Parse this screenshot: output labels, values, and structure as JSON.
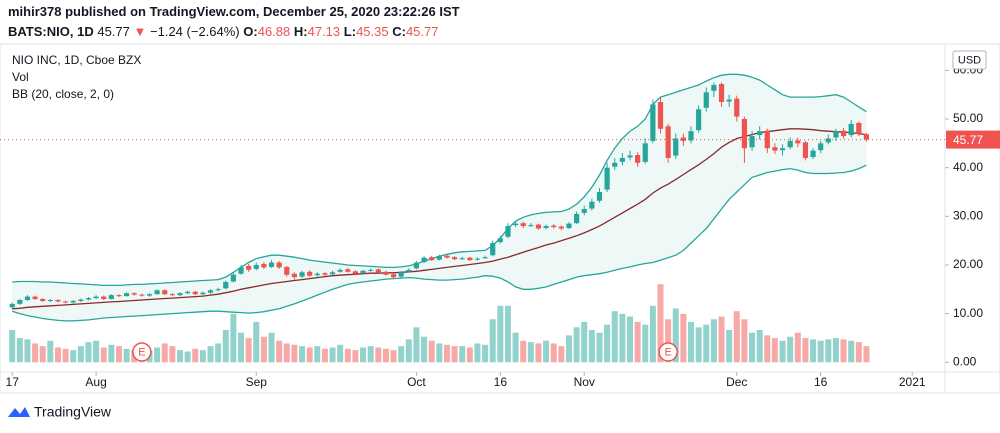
{
  "header": {
    "byline": "mihir378 published on TradingView.com, December 25, 2020 23:22:26 IST",
    "symbol": "BATS:NIO, 1D",
    "last": "45.77",
    "arrow": "▼",
    "change": "−1.24 (−2.64%)",
    "o_label": "O:",
    "o": "46.88",
    "h_label": "H:",
    "h": "47.13",
    "l_label": "L:",
    "l": "45.35",
    "c_label": "C:",
    "c": "45.77"
  },
  "footer": {
    "logo": "TradingView"
  },
  "chart_data": {
    "type": "candlestick",
    "legend": [
      "NIO INC, 1D, Cboe BZX",
      "Vol",
      "BB (20, close, 2, 0)"
    ],
    "currency": "USD",
    "up_color": "#26a69a",
    "down_color": "#ef5350",
    "band_color": "#26a69a",
    "basis_color": "#8b2a2a",
    "ylim": [
      -2,
      64.6
    ],
    "yticks": [
      {
        "value": 0,
        "label": "0.00"
      },
      {
        "value": 10,
        "label": "10.00"
      },
      {
        "value": 20,
        "label": "20.00"
      },
      {
        "value": 30,
        "label": "30.00"
      },
      {
        "value": 40,
        "label": "40.00"
      },
      {
        "value": 50,
        "label": "50.00"
      },
      {
        "value": 60,
        "label": "60.00"
      }
    ],
    "xlim": [
      -1.6,
      122.3
    ],
    "xticks": [
      {
        "value": 0,
        "label": "17"
      },
      {
        "value": 11,
        "label": "Aug"
      },
      {
        "value": 32,
        "label": "Sep"
      },
      {
        "value": 53,
        "label": "Oct"
      },
      {
        "value": 64,
        "label": "16"
      },
      {
        "value": 75,
        "label": "Nov"
      },
      {
        "value": 95,
        "label": "Dec"
      },
      {
        "value": 106,
        "label": "16"
      },
      {
        "value": 118,
        "label": "2021"
      }
    ],
    "annotations": [
      {
        "label": "E",
        "x": 17
      },
      {
        "label": "E",
        "x": 86
      }
    ],
    "open": [
      11.3,
      12.0,
      12.8,
      13.5,
      13.0,
      12.6,
      12.8,
      12.5,
      12.3,
      12.6,
      12.9,
      13.2,
      13.5,
      13.0,
      13.8,
      13.6,
      14.2,
      13.9,
      13.7,
      14.0,
      14.8,
      14.0,
      13.8,
      14.2,
      14.5,
      14.0,
      14.3,
      14.8,
      15.2,
      16.6,
      18.2,
      19.8,
      19.2,
      20.2,
      19.6,
      20.5,
      19.6,
      18.2,
      17.6,
      18.6,
      17.9,
      18.3,
      18.1,
      18.6,
      19.1,
      18.7,
      18.3,
      18.9,
      19.1,
      18.6,
      18.1,
      17.6,
      18.6,
      19.3,
      20.6,
      21.6,
      21.1,
      21.9,
      21.6,
      21.3,
      21.5,
      21.1,
      21.4,
      22.0,
      24.7,
      25.8,
      28.2,
      28.6,
      28.1,
      28.3,
      27.6,
      28.1,
      27.9,
      27.6,
      28.6,
      30.7,
      31.6,
      33.2,
      35.5,
      40.2,
      41.2,
      42.1,
      42.6,
      41.2,
      45.5,
      53.5,
      48.5,
      42.5,
      46.2,
      45.6,
      47.7,
      52.3,
      55.8,
      57.2,
      53.6,
      54.2,
      50.0,
      44.2,
      46.7,
      47.6,
      44.2,
      43.6,
      44.2,
      45.6,
      45.2,
      42.2,
      43.6,
      45.2,
      46.2,
      47.6,
      46.7,
      49.2,
      46.88
    ],
    "high": [
      12.3,
      13.0,
      13.8,
      13.7,
      13.2,
      13.0,
      13.0,
      12.7,
      12.8,
      13.1,
      13.4,
      13.8,
      13.7,
      14.0,
      14.0,
      14.4,
      14.4,
      14.1,
      14.2,
      15.0,
      15.0,
      14.2,
      14.4,
      14.7,
      14.7,
      14.5,
      15.0,
      15.3,
      16.8,
      18.4,
      20.0,
      20.2,
      20.5,
      20.6,
      21.0,
      20.8,
      19.8,
      18.5,
      18.8,
      18.9,
      18.5,
      18.6,
      18.8,
      19.3,
      19.4,
      18.9,
      19.0,
      19.3,
      19.3,
      18.8,
      18.3,
      18.7,
      19.3,
      20.8,
      21.8,
      21.9,
      22.1,
      22.2,
      21.8,
      21.7,
      21.7,
      21.6,
      21.9,
      25.0,
      26.0,
      28.6,
      29.0,
      28.9,
      28.6,
      28.5,
      28.3,
      28.4,
      28.1,
      28.8,
      31.0,
      32.2,
      33.6,
      35.8,
      41.0,
      42.0,
      43.0,
      43.5,
      43.2,
      46.0,
      54.0,
      54.5,
      49.0,
      47.0,
      47.0,
      48.5,
      52.8,
      56.5,
      57.5,
      57.5,
      55.0,
      54.8,
      50.5,
      47.5,
      48.5,
      48.0,
      45.0,
      44.8,
      46.2,
      46.2,
      45.5,
      44.0,
      45.5,
      46.8,
      48.0,
      48.2,
      49.8,
      49.5,
      47.13
    ],
    "low": [
      11.0,
      11.8,
      12.6,
      12.8,
      12.4,
      12.4,
      12.3,
      12.1,
      12.1,
      12.4,
      12.7,
      13.0,
      12.8,
      12.9,
      13.4,
      13.5,
      13.7,
      13.5,
      13.5,
      13.9,
      13.8,
      13.6,
      13.6,
      14.0,
      13.8,
      13.8,
      14.1,
      14.6,
      15.0,
      16.4,
      18.0,
      18.6,
      18.9,
      19.2,
      19.4,
      19.2,
      17.6,
      17.0,
      17.3,
      17.5,
      17.6,
      17.7,
      17.9,
      18.4,
      18.4,
      17.9,
      18.1,
      18.6,
      18.3,
      17.8,
      17.2,
      17.4,
      18.4,
      19.1,
      20.4,
      20.8,
      20.9,
      21.3,
      21.0,
      21.0,
      20.8,
      20.9,
      21.2,
      21.8,
      24.4,
      25.5,
      27.8,
      27.6,
      27.8,
      27.2,
      27.3,
      27.5,
      27.1,
      27.4,
      28.4,
      30.2,
      31.2,
      32.8,
      35.0,
      39.5,
      40.5,
      41.5,
      40.2,
      40.8,
      45.0,
      47.0,
      41.0,
      41.8,
      44.5,
      45.0,
      47.2,
      51.5,
      54.5,
      52.5,
      52.5,
      49.5,
      41.0,
      43.5,
      45.8,
      43.0,
      42.8,
      42.5,
      43.8,
      44.2,
      41.5,
      41.8,
      43.0,
      44.8,
      45.5,
      46.0,
      46.2,
      46.5,
      45.35
    ],
    "close": [
      12.0,
      12.8,
      13.5,
      13.0,
      12.6,
      12.8,
      12.5,
      12.3,
      12.6,
      12.9,
      13.2,
      13.5,
      13.0,
      13.8,
      13.6,
      14.2,
      13.9,
      13.7,
      14.0,
      14.8,
      14.0,
      13.8,
      14.2,
      14.5,
      14.0,
      14.3,
      14.8,
      15.0,
      16.5,
      18.0,
      19.5,
      19.0,
      20.0,
      19.5,
      20.5,
      19.5,
      18.0,
      17.5,
      18.5,
      17.8,
      18.2,
      18.0,
      18.5,
      19.0,
      18.6,
      18.2,
      18.8,
      19.0,
      18.5,
      18.0,
      17.5,
      18.5,
      19.0,
      20.5,
      21.5,
      21.0,
      21.8,
      21.5,
      21.2,
      21.4,
      21.0,
      21.3,
      21.6,
      24.5,
      25.5,
      28.0,
      28.5,
      28.0,
      28.2,
      27.5,
      28.0,
      27.8,
      27.5,
      28.5,
      30.5,
      31.5,
      33.0,
      35.0,
      40.0,
      41.0,
      42.0,
      42.5,
      41.0,
      45.0,
      53.0,
      48.0,
      42.0,
      46.0,
      45.5,
      47.5,
      52.0,
      55.5,
      57.0,
      53.5,
      54.0,
      50.5,
      44.0,
      46.5,
      47.5,
      44.0,
      43.5,
      44.0,
      45.5,
      45.0,
      42.0,
      43.5,
      45.0,
      46.0,
      47.5,
      46.5,
      49.0,
      47.0,
      45.77
    ],
    "volume": [
      120,
      90,
      85,
      70,
      60,
      80,
      55,
      50,
      45,
      60,
      75,
      80,
      55,
      65,
      60,
      50,
      45,
      40,
      45,
      55,
      70,
      60,
      45,
      40,
      50,
      45,
      60,
      70,
      120,
      180,
      110,
      90,
      150,
      95,
      110,
      80,
      70,
      65,
      60,
      55,
      60,
      50,
      55,
      65,
      50,
      45,
      55,
      60,
      55,
      50,
      45,
      60,
      85,
      130,
      95,
      80,
      70,
      65,
      60,
      60,
      55,
      70,
      65,
      160,
      210,
      210,
      110,
      80,
      75,
      70,
      80,
      70,
      60,
      100,
      130,
      150,
      120,
      110,
      140,
      190,
      180,
      170,
      150,
      140,
      210,
      290,
      160,
      200,
      180,
      150,
      130,
      140,
      160,
      170,
      120,
      190,
      160,
      110,
      120,
      100,
      90,
      80,
      95,
      110,
      90,
      85,
      80,
      85,
      90,
      85,
      80,
      75,
      60
    ],
    "bb_basis": [
      11.0,
      11.1,
      11.3,
      11.4,
      11.5,
      11.6,
      11.7,
      11.8,
      11.9,
      12.0,
      12.1,
      12.2,
      12.3,
      12.4,
      12.5,
      12.6,
      12.7,
      12.8,
      12.9,
      13.0,
      13.1,
      13.2,
      13.3,
      13.4,
      13.5,
      13.6,
      13.8,
      14.0,
      14.3,
      14.6,
      15.0,
      15.3,
      15.6,
      15.9,
      16.2,
      16.4,
      16.6,
      16.8,
      17.0,
      17.2,
      17.4,
      17.6,
      17.8,
      17.9,
      18.0,
      18.1,
      18.2,
      18.3,
      18.3,
      18.4,
      18.4,
      18.5,
      18.6,
      18.7,
      18.9,
      19.1,
      19.3,
      19.5,
      19.7,
      19.9,
      20.1,
      20.3,
      20.5,
      20.8,
      21.2,
      21.6,
      22.1,
      22.6,
      23.1,
      23.6,
      24.1,
      24.5,
      25.0,
      25.5,
      26.0,
      26.6,
      27.3,
      28.0,
      28.9,
      29.8,
      30.7,
      31.6,
      32.5,
      33.5,
      34.8,
      35.8,
      36.6,
      37.6,
      38.6,
      39.6,
      40.6,
      41.7,
      42.9,
      44.2,
      45.2,
      46.0,
      46.4,
      46.8,
      47.2,
      47.4,
      47.6,
      47.8,
      48.0,
      48.0,
      47.9,
      47.8,
      47.6,
      47.5,
      47.4,
      47.3,
      47.2,
      47.0,
      46.8
    ],
    "bb_upper": [
      16.5,
      16.6,
      16.6,
      16.6,
      16.5,
      16.5,
      16.4,
      16.3,
      16.2,
      16.1,
      16.0,
      15.9,
      15.8,
      15.8,
      15.8,
      15.9,
      16.0,
      16.0,
      16.1,
      16.2,
      16.3,
      16.4,
      16.5,
      16.6,
      16.7,
      16.8,
      16.9,
      17.0,
      17.5,
      18.5,
      19.5,
      20.5,
      21.3,
      21.7,
      22.0,
      22.0,
      21.8,
      21.6,
      21.3,
      21.0,
      20.8,
      20.6,
      20.4,
      20.2,
      20.0,
      19.9,
      19.8,
      19.7,
      19.6,
      19.5,
      19.5,
      19.6,
      19.8,
      20.2,
      20.8,
      21.3,
      21.8,
      22.2,
      22.5,
      22.7,
      22.8,
      22.9,
      23.0,
      24.0,
      25.5,
      27.5,
      29.0,
      29.8,
      30.3,
      30.6,
      30.8,
      30.9,
      31.0,
      31.5,
      32.5,
      34.0,
      36.0,
      38.5,
      41.5,
      44.0,
      46.0,
      47.5,
      48.5,
      50.0,
      53.0,
      54.5,
      55.0,
      55.5,
      56.0,
      56.5,
      57.0,
      57.8,
      58.5,
      59.0,
      59.2,
      59.2,
      59.0,
      58.6,
      58.0,
      57.0,
      56.0,
      55.0,
      54.5,
      54.5,
      54.5,
      54.5,
      54.6,
      54.8,
      55.0,
      54.5,
      53.5,
      52.5,
      51.5
    ],
    "bb_lower": [
      10.5,
      10.0,
      9.6,
      9.3,
      9.0,
      8.8,
      8.6,
      8.5,
      8.5,
      8.6,
      8.7,
      8.9,
      9.1,
      9.2,
      9.3,
      9.4,
      9.5,
      9.6,
      9.7,
      9.8,
      9.9,
      10.0,
      10.1,
      10.2,
      10.3,
      10.4,
      10.5,
      10.5,
      10.4,
      10.3,
      10.2,
      10.1,
      10.2,
      10.4,
      10.7,
      11.0,
      11.5,
      12.0,
      12.6,
      13.2,
      13.8,
      14.4,
      15.0,
      15.5,
      16.0,
      16.3,
      16.5,
      16.7,
      16.9,
      17.1,
      17.2,
      17.3,
      17.4,
      17.3,
      17.1,
      17.0,
      16.9,
      16.9,
      17.0,
      17.1,
      17.3,
      17.5,
      17.8,
      17.7,
      17.3,
      16.5,
      15.5,
      15.0,
      15.0,
      15.2,
      15.5,
      16.0,
      16.5,
      17.0,
      17.5,
      17.8,
      18.0,
      18.2,
      18.5,
      18.9,
      19.3,
      19.6,
      20.0,
      20.3,
      20.5,
      21.0,
      21.5,
      22.0,
      23.0,
      24.5,
      26.0,
      27.5,
      29.5,
      31.5,
      33.5,
      35.0,
      36.5,
      38.0,
      38.5,
      39.0,
      39.3,
      39.6,
      39.8,
      39.5,
      39.0,
      38.8,
      38.8,
      38.8,
      38.9,
      39.0,
      39.3,
      39.8,
      40.5
    ]
  }
}
